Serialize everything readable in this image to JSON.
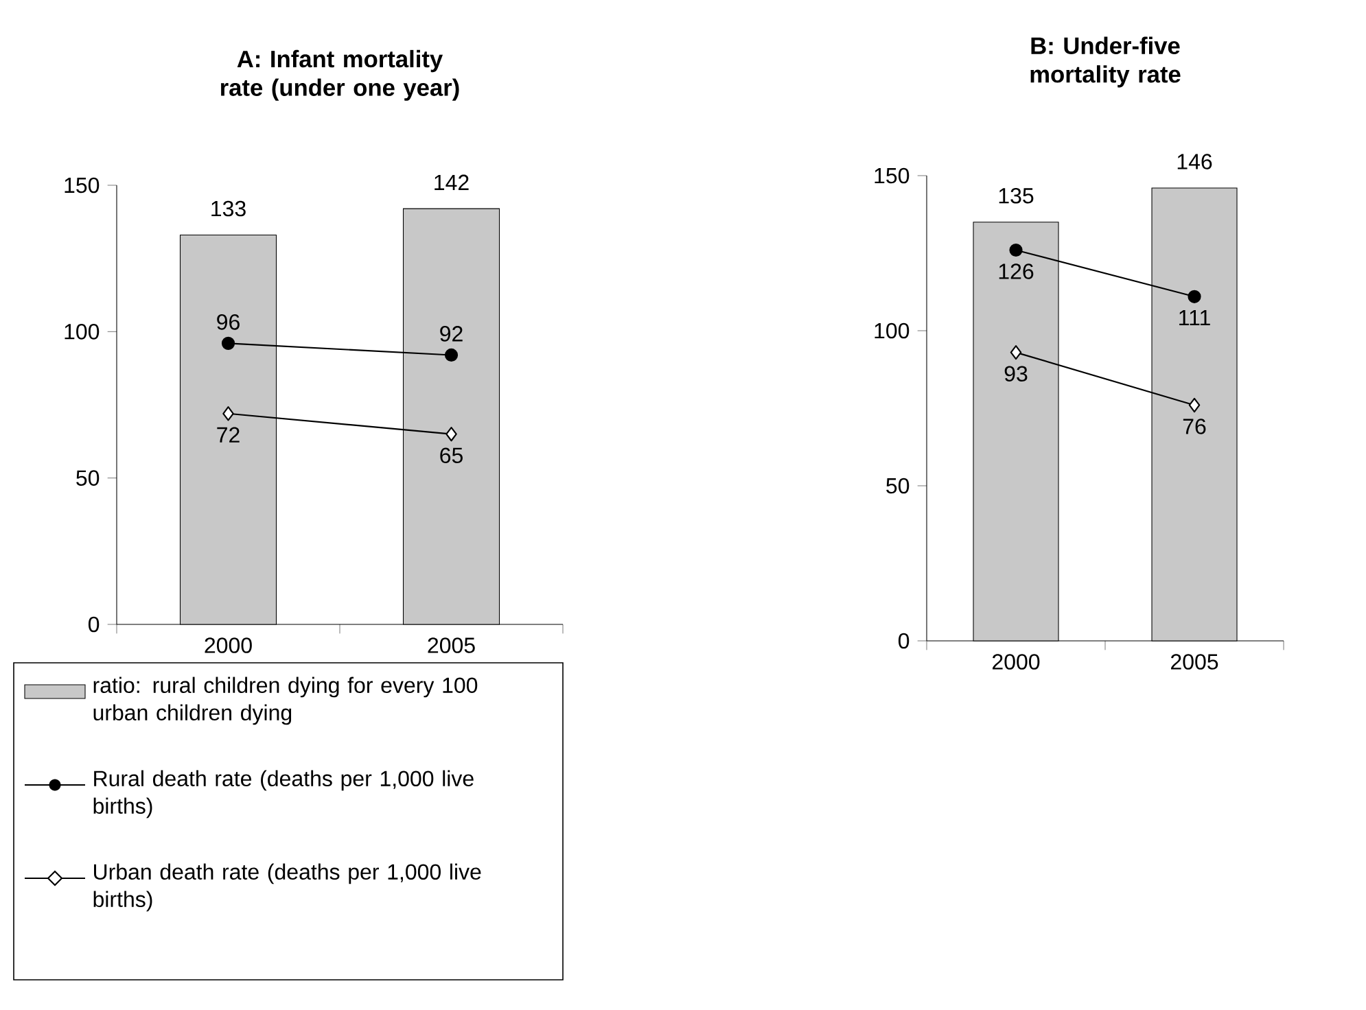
{
  "chart_data": [
    {
      "type": "bar",
      "title": "A: Infant mortality rate (under one year)",
      "categories": [
        "2000",
        "2005"
      ],
      "series": [
        {
          "name": "ratio: rural children dying for every 100 urban children dying",
          "color": "#c8c8c8",
          "values": [
            133,
            142
          ]
        },
        {
          "name": "Rural death rate (deaths per 1,000 live births)",
          "type": "line",
          "color": "#000000",
          "marker": "circle",
          "values": [
            96,
            92
          ]
        },
        {
          "name": "Urban death rate (deaths per 1,000 live births)",
          "type": "line",
          "color": "#000000",
          "marker": "diamond",
          "values": [
            72,
            65
          ]
        }
      ],
      "ylim": [
        0,
        150
      ],
      "yticks": [
        0,
        50,
        100,
        150
      ],
      "data_labels": true,
      "legend": "bottom"
    },
    {
      "type": "bar",
      "title": "B: Under-five mortality rate",
      "categories": [
        "2000",
        "2005"
      ],
      "series": [
        {
          "color": "#c8c8c8",
          "values": [
            135,
            146
          ]
        },
        {
          "type": "line",
          "color": "#000000",
          "marker": "circle",
          "values": [
            126,
            111
          ]
        },
        {
          "type": "line",
          "color": "#000000",
          "marker": "diamond",
          "values": [
            93,
            76
          ]
        }
      ],
      "ylim": [
        0,
        150
      ],
      "yticks": [
        0,
        50,
        100,
        150
      ],
      "data_labels": true
    }
  ]
}
